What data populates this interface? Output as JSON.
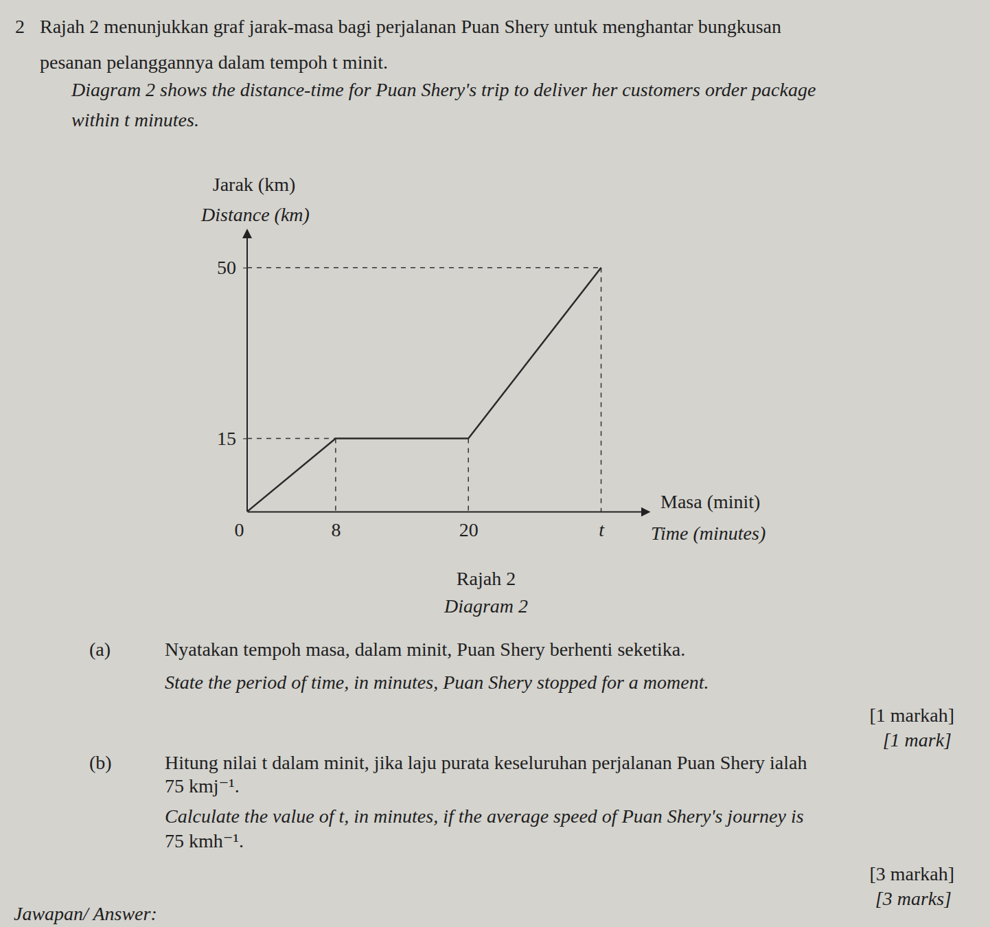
{
  "question": {
    "number": "2",
    "intro_bm": [
      "Rajah 2 menunjukkan graf jarak-masa bagi perjalanan Puan Shery untuk menghantar bungkusan",
      "pesanan pelanggannya dalam tempoh t minit."
    ],
    "intro_en": [
      "Diagram 2 shows the distance-time for Puan Shery's trip to deliver her customers order package",
      "within t minutes."
    ],
    "parts": [
      {
        "label": "(a)",
        "bm": [
          "Nyatakan tempoh masa, dalam minit, Puan Shery berhenti seketika."
        ],
        "en": [
          "State the period of time, in minutes, Puan Shery stopped for a moment."
        ],
        "marks_bm": "[1 markah]",
        "marks_en": "[1 mark]"
      },
      {
        "label": "(b)",
        "bm": [
          "Hitung nilai t dalam minit, jika laju purata keseluruhan perjalanan  Puan Shery ialah",
          "75 kmj⁻¹."
        ],
        "en": [
          "Calculate the value of t, in minutes, if the average speed of  Puan Shery's journey is",
          "75 kmh⁻¹."
        ],
        "marks_bm": "[3 markah]",
        "marks_en": "[3 marks]"
      }
    ],
    "answer_label": "Jawapan/ Answer:"
  },
  "chart_data": {
    "type": "line",
    "title": "Rajah 2",
    "subtitle": "Diagram 2",
    "x_label": [
      "Masa (minit)",
      "Time (minutes)"
    ],
    "y_label": [
      "Jarak (km)",
      "Distance (km)"
    ],
    "x": [
      0,
      8,
      20,
      32
    ],
    "values": [
      0,
      15,
      15,
      50
    ],
    "color": "#2a2a2a",
    "xlim": [
      0,
      36
    ],
    "ylim": [
      0,
      57
    ],
    "xticks": [
      0,
      8,
      20,
      {
        "value": 32,
        "label": "t"
      }
    ],
    "yticks": [
      15,
      50
    ],
    "grid": false
  }
}
